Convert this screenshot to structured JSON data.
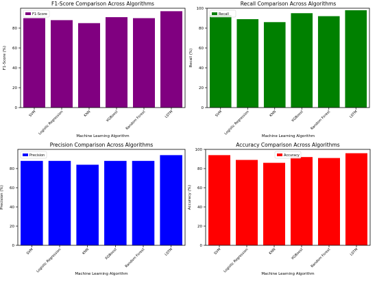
{
  "chart_data": [
    {
      "type": "bar",
      "title": "F1-Score Comparison Across Algorithms",
      "xlabel": "Machine Learning Algorithm",
      "ylabel": "F1-Score (%)",
      "categories": [
        "SVM",
        "Logistic Regression",
        "KNN",
        "XGBoost",
        "Random Forest",
        "LSTM"
      ],
      "series": [
        {
          "name": "F1-Score",
          "values": [
            90,
            88,
            85,
            91,
            90,
            97
          ]
        }
      ],
      "ylim": [
        0,
        100
      ],
      "yticks": [
        0,
        20,
        40,
        60,
        80
      ],
      "color": "#800080",
      "legend": "top-left",
      "grid": false
    },
    {
      "type": "bar",
      "title": "Recall Comparison Across Algorithms",
      "xlabel": "Machine Learning Algorithm",
      "ylabel": "Recall (%)",
      "categories": [
        "SVM",
        "Logistic Regression",
        "KNN",
        "XGBoost",
        "Random Forest",
        "LSTM"
      ],
      "series": [
        {
          "name": "Recall",
          "values": [
            93,
            89,
            86,
            95,
            92,
            98
          ]
        }
      ],
      "ylim": [
        0,
        100
      ],
      "yticks": [
        0,
        20,
        40,
        60,
        80,
        100
      ],
      "color": "#008000",
      "legend": "top-left",
      "grid": false
    },
    {
      "type": "bar",
      "title": "Precision Comparison Across Algorithms",
      "xlabel": "Machine Learning Algorithm",
      "ylabel": "Precision (%)",
      "categories": [
        "SVM",
        "Logistic Regression",
        "KNN",
        "XGBoost",
        "Random Forest",
        "LSTM"
      ],
      "series": [
        {
          "name": "Precision",
          "values": [
            88,
            88,
            84,
            88,
            88,
            94
          ]
        }
      ],
      "ylim": [
        0,
        100
      ],
      "yticks": [
        0,
        20,
        40,
        60,
        80
      ],
      "color": "#0000ff",
      "legend": "top-left",
      "grid": false
    },
    {
      "type": "bar",
      "title": "Accuracy Comparison Across Algorithms",
      "xlabel": "Machine Learning Algorithm",
      "ylabel": "Accuracy (%)",
      "categories": [
        "SVM",
        "Logistic Regression",
        "KNN",
        "XGBoost",
        "Random Forest",
        "LSTM"
      ],
      "series": [
        {
          "name": "Accuracy",
          "values": [
            94,
            89,
            86,
            92,
            91,
            96
          ]
        }
      ],
      "ylim": [
        0,
        100
      ],
      "yticks": [
        0,
        20,
        40,
        60,
        80,
        100
      ],
      "color": "#ff0000",
      "legend": "top-center",
      "grid": false
    }
  ]
}
